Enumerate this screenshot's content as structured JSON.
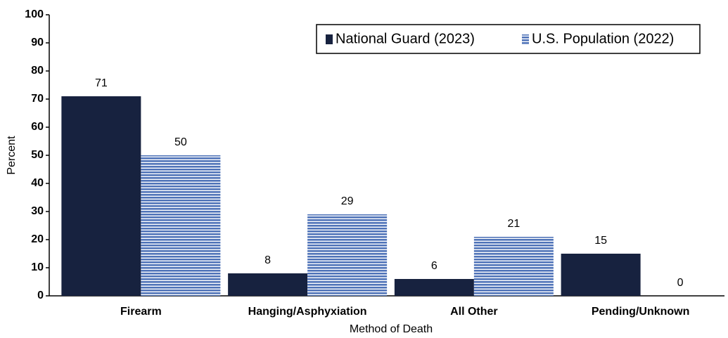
{
  "chart_data": {
    "type": "bar",
    "x_label": "Method of Death",
    "y_label": "Percent",
    "categories": [
      "Firearm",
      "Hanging/Asphyxiation",
      "All Other",
      "Pending/Unknown"
    ],
    "series": [
      {
        "name": "National Guard (2023)",
        "color": "#17223f",
        "values": [
          71,
          8,
          6,
          15
        ]
      },
      {
        "name": "U.S. Population (2022)",
        "color": "#4f73b8",
        "hatch": "horizontal",
        "values": [
          50,
          29,
          21,
          0
        ]
      }
    ],
    "ylim": [
      0,
      100
    ],
    "yticks": [
      0,
      10,
      20,
      30,
      40,
      50,
      60,
      70,
      80,
      90,
      100
    ],
    "grid": false,
    "legend": "upper right"
  }
}
